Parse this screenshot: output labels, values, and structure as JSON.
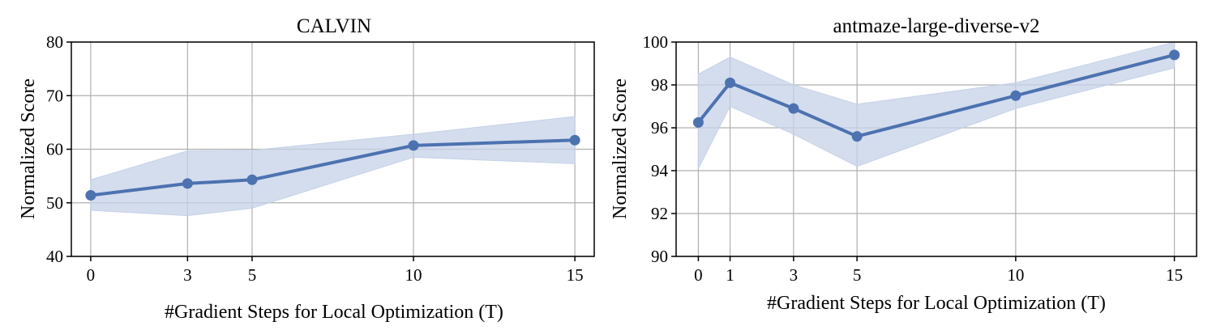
{
  "colors": {
    "line": "#4c72b0",
    "band": "#c5d1e8",
    "grid": "#b0b0b0",
    "axis": "#000000"
  },
  "chart_data": [
    {
      "type": "line",
      "title": "CALVIN",
      "xlabel": "#Gradient Steps for Local Optimization (T)",
      "ylabel": "Normalized Score",
      "x": [
        0,
        3,
        5,
        10,
        15
      ],
      "xticks": [
        0,
        3,
        5,
        10,
        15
      ],
      "yticks": [
        40,
        50,
        60,
        70,
        80
      ],
      "xlim": [
        -0.6,
        15.6
      ],
      "ylim": [
        40,
        80
      ],
      "grid": true,
      "series": [
        {
          "values": [
            51.4,
            53.6,
            54.3,
            60.7,
            61.7
          ],
          "lower": [
            48.6,
            47.6,
            49.0,
            58.5,
            57.3
          ],
          "upper": [
            54.3,
            59.7,
            59.8,
            62.8,
            66.1
          ]
        }
      ]
    },
    {
      "type": "line",
      "title": "antmaze-large-diverse-v2",
      "xlabel": "#Gradient Steps for Local Optimization (T)",
      "ylabel": "Normalized Score",
      "x": [
        0,
        1,
        3,
        5,
        10,
        15
      ],
      "xticks": [
        0,
        1,
        3,
        5,
        10,
        15
      ],
      "yticks": [
        90,
        92,
        94,
        96,
        98,
        100
      ],
      "xlim": [
        -0.7,
        15.7
      ],
      "ylim": [
        90,
        100
      ],
      "grid": true,
      "series": [
        {
          "values": [
            96.25,
            98.1,
            96.9,
            95.6,
            97.5,
            99.4
          ],
          "lower": [
            94.1,
            97.0,
            95.7,
            94.2,
            96.9,
            98.8
          ],
          "upper": [
            98.5,
            99.3,
            98.0,
            97.1,
            98.1,
            100.0
          ]
        }
      ]
    }
  ]
}
